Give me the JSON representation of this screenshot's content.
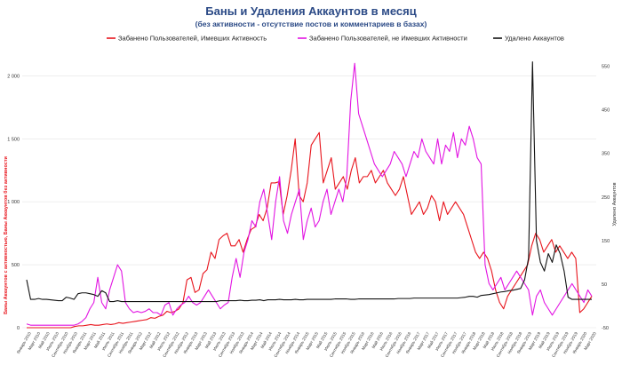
{
  "chart_data": {
    "type": "line",
    "title": "Баны и Удаления Аккаунтов в месяц",
    "subtitle": "(без активности - отсутствие постов и комментариев в базах)",
    "ylabel_left": "Баны Аккаунтов с активностью, Баны Аккаунтов без активности",
    "ylabel_right": "Удалено Аккаунтов",
    "ylim_left": [
      0,
      2250
    ],
    "ylim_right": [
      -50,
      600
    ],
    "yticks_left": [
      "0",
      "500",
      "1 000",
      "1 500",
      "2 000"
    ],
    "yticks_left_values": [
      0,
      500,
      1000,
      1500,
      2000
    ],
    "yticks_right": [
      "-50",
      "50",
      "150",
      "250",
      "350",
      "450",
      "550"
    ],
    "yticks_right_values": [
      -50,
      50,
      150,
      250,
      350,
      450,
      550
    ],
    "grid": true,
    "legend_position": "top",
    "x_labels": [
      "Январь 2010",
      "Март 2010",
      "Май 2010",
      "Июль 2010",
      "Сентябрь 2010",
      "Ноябрь 2010",
      "Январь 2011",
      "Март 2011",
      "Май 2011",
      "Июль 2011",
      "Сентябрь 2011",
      "Ноябрь 2011",
      "Январь 2012",
      "Март 2012",
      "Май 2012",
      "Июль 2012",
      "Сентябрь 2012",
      "Ноябрь 2012",
      "Январь 2013",
      "Март 2013",
      "Май 2013",
      "Июль 2013",
      "Сентябрь 2013",
      "Ноябрь 2013",
      "Январь 2014",
      "Март 2014",
      "Май 2014",
      "Июль 2014",
      "Сентябрь 2014",
      "Ноябрь 2014",
      "Январь 2015",
      "Март 2015",
      "Май 2015",
      "Июль 2015",
      "Сентябрь 2015",
      "Ноябрь 2015",
      "Январь 2016",
      "Март 2016",
      "Май 2016",
      "Июль 2016",
      "Сентябрь 2016",
      "Ноябрь 2016",
      "Январь 2017",
      "Март 2017",
      "Май 2017",
      "Июль 2017",
      "Сентябрь 2017",
      "Ноябрь 2017",
      "Январь 2018",
      "Март 2018",
      "Май 2018",
      "Июль 2018",
      "Сентябрь 2018",
      "Ноябрь 2018",
      "Январь 2019",
      "Март 2019",
      "Май 2019",
      "Июль 2019",
      "Сентябрь 2019",
      "Ноябрь 2019",
      "Январь 2020",
      "Март 2020"
    ],
    "series": [
      {
        "name": "Забанено Пользователей, Имевших Активность",
        "color": "#e8141c",
        "axis": "left",
        "values": [
          0,
          0,
          0,
          0,
          0,
          0,
          0,
          0,
          0,
          0,
          0,
          0,
          10,
          15,
          15,
          20,
          25,
          20,
          20,
          25,
          30,
          25,
          30,
          40,
          35,
          40,
          45,
          50,
          55,
          60,
          65,
          80,
          75,
          90,
          100,
          130,
          120,
          130,
          150,
          200,
          380,
          400,
          280,
          300,
          430,
          460,
          600,
          550,
          700,
          730,
          750,
          650,
          650,
          700,
          600,
          700,
          780,
          800,
          900,
          850,
          950,
          1150,
          1150,
          1160,
          900,
          1050,
          1250,
          1500,
          1050,
          1000,
          1150,
          1450,
          1500,
          1550,
          1150,
          1250,
          1350,
          1100,
          1150,
          1200,
          1100,
          1250,
          1350,
          1150,
          1200,
          1200,
          1250,
          1150,
          1200,
          1250,
          1150,
          1100,
          1050,
          1100,
          1200,
          1050,
          900,
          950,
          1000,
          900,
          950,
          1050,
          1000,
          850,
          1000,
          900,
          950,
          1000,
          950,
          900,
          800,
          700,
          600,
          550,
          600,
          550,
          450,
          300,
          200,
          150,
          250,
          300,
          350,
          400,
          450,
          500,
          650,
          750,
          700,
          600,
          650,
          700,
          600,
          650,
          600,
          550,
          600,
          550,
          120,
          150,
          200,
          250
        ],
        "values_note": ""
      },
      {
        "name": "Забанено Пользователей, не Имевших Активности",
        "color": "#e214e2",
        "axis": "left",
        "values": [
          30,
          20,
          20,
          20,
          20,
          20,
          20,
          20,
          20,
          20,
          20,
          20,
          20,
          30,
          50,
          80,
          150,
          200,
          400,
          200,
          150,
          300,
          400,
          500,
          450,
          200,
          150,
          120,
          130,
          120,
          130,
          150,
          120,
          120,
          100,
          180,
          200,
          100,
          150,
          180,
          200,
          250,
          200,
          180,
          200,
          250,
          300,
          250,
          200,
          150,
          180,
          200,
          400,
          550,
          400,
          600,
          700,
          850,
          800,
          1000,
          1100,
          900,
          700,
          1000,
          1200,
          850,
          750,
          900,
          1000,
          1100,
          700,
          850,
          950,
          800,
          850,
          1000,
          1100,
          900,
          1000,
          1100,
          1000,
          1200,
          1800,
          2100,
          1700,
          1600,
          1500,
          1400,
          1300,
          1250,
          1200,
          1250,
          1300,
          1400,
          1350,
          1300,
          1200,
          1300,
          1400,
          1350,
          1500,
          1400,
          1350,
          1300,
          1500,
          1300,
          1450,
          1400,
          1550,
          1350,
          1500,
          1450,
          1600,
          1500,
          1350,
          1300,
          500,
          350,
          300,
          350,
          400,
          300,
          350,
          400,
          450,
          400,
          350,
          300,
          100,
          250,
          300,
          200,
          150,
          100,
          150,
          200,
          250,
          300,
          350,
          300,
          250,
          200,
          300,
          250
        ],
        "values_note": ""
      },
      {
        "name": "Удалено Аккаунтов",
        "color": "#111111",
        "axis": "right",
        "values": [
          60,
          15,
          15,
          17,
          15,
          15,
          14,
          13,
          12,
          12,
          20,
          18,
          15,
          28,
          30,
          30,
          28,
          26,
          22,
          35,
          30,
          10,
          10,
          12,
          10,
          10,
          10,
          10,
          10,
          10,
          10,
          10,
          10,
          10,
          10,
          10,
          10,
          10,
          10,
          10,
          10,
          10,
          10,
          10,
          10,
          10,
          10,
          10,
          10,
          12,
          12,
          12,
          12,
          12,
          13,
          12,
          12,
          13,
          13,
          14,
          12,
          14,
          14,
          14,
          15,
          14,
          14,
          14,
          15,
          14,
          14,
          15,
          15,
          15,
          15,
          15,
          15,
          15,
          16,
          16,
          16,
          16,
          15,
          15,
          16,
          16,
          16,
          16,
          16,
          16,
          16,
          16,
          16,
          16,
          17,
          17,
          17,
          17,
          18,
          18,
          18,
          18,
          18,
          18,
          18,
          18,
          18,
          18,
          18,
          18,
          19,
          20,
          22,
          22,
          20,
          24,
          25,
          26,
          28,
          30,
          32,
          33,
          35,
          36,
          38,
          40,
          60,
          110,
          560,
          150,
          100,
          80,
          120,
          100,
          140,
          120,
          80,
          20,
          15,
          15,
          15,
          15,
          15,
          15
        ],
        "values_note": ""
      }
    ]
  }
}
